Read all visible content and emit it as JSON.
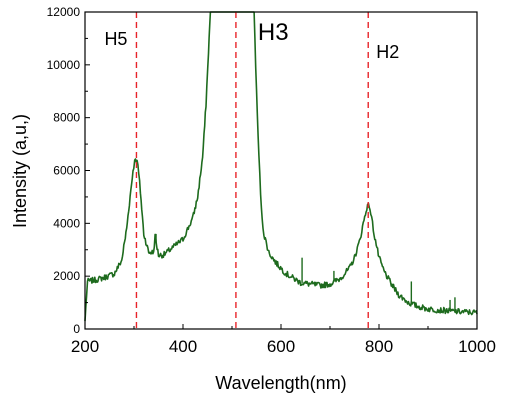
{
  "chart_data": {
    "type": "line",
    "xlabel": "Wavelength(nm)",
    "ylabel": "Intensity (a,u,)",
    "xlim": [
      200,
      1000
    ],
    "ylim": [
      0,
      12000
    ],
    "x_ticks": [
      200,
      400,
      600,
      800,
      1000
    ],
    "y_ticks": [
      0,
      2000,
      4000,
      6000,
      8000,
      10000,
      12000
    ],
    "grid": false,
    "colors": {
      "series": "#1e6b1e",
      "markers": "#e8242a"
    },
    "series": [
      {
        "x": [
          200,
          205,
          220,
          240,
          260,
          275,
          285,
          292,
          298,
          303,
          308,
          313,
          320,
          330,
          340,
          343,
          350,
          360,
          380,
          400,
          420,
          430,
          440,
          447,
          452,
          456,
          460,
          545,
          550,
          555,
          560,
          565,
          575,
          590,
          610,
          640,
          680,
          700,
          720,
          740,
          750,
          760,
          768,
          775,
          780,
          785,
          790,
          800,
          810,
          825,
          840,
          860,
          880,
          900,
          920,
          940,
          960,
          980,
          1000
        ],
        "y": [
          300,
          1800,
          1850,
          1950,
          2100,
          2600,
          3800,
          5000,
          6000,
          6500,
          6200,
          5200,
          3600,
          2900,
          2900,
          3500,
          2800,
          2800,
          3100,
          3400,
          4200,
          5000,
          6500,
          8500,
          10500,
          12000,
          12000,
          12000,
          9000,
          6500,
          4500,
          3600,
          2900,
          2500,
          2100,
          1750,
          1650,
          1700,
          1900,
          2300,
          2700,
          3300,
          4000,
          4600,
          4700,
          4200,
          3600,
          2700,
          2200,
          1700,
          1300,
          1000,
          850,
          760,
          720,
          690,
          660,
          640,
          620
        ]
      }
    ],
    "spikes": [
      {
        "x": 345,
        "y": 3600
      },
      {
        "x": 643,
        "y": 2700
      },
      {
        "x": 708,
        "y": 2200
      },
      {
        "x": 866,
        "y": 1800
      },
      {
        "x": 945,
        "y": 1100
      },
      {
        "x": 955,
        "y": 1200
      }
    ],
    "reference_lines": [
      {
        "x": 305,
        "label": "H5"
      },
      {
        "x": 508,
        "label": "H3"
      },
      {
        "x": 778,
        "label": "H2"
      }
    ]
  }
}
